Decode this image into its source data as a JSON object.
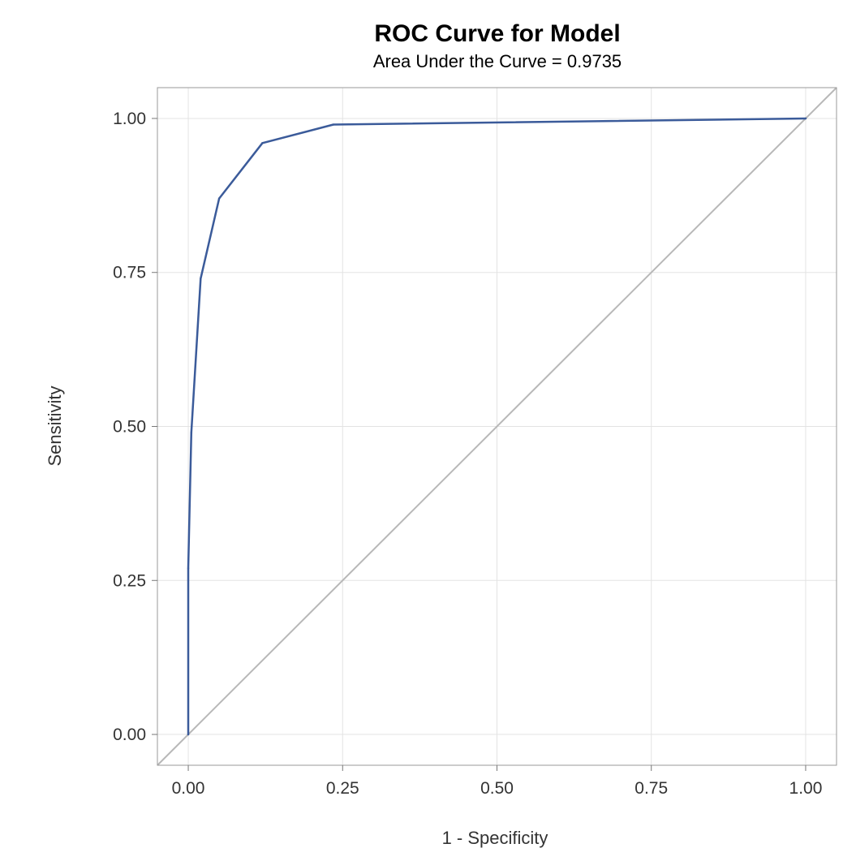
{
  "chart_data": {
    "type": "line",
    "title": "ROC Curve for Model",
    "subtitle": "Area Under the Curve = 0.9735",
    "xlabel": "1 - Specificity",
    "ylabel": "Sensitivity",
    "xlim": [
      -0.05,
      1.05
    ],
    "ylim": [
      -0.05,
      1.05
    ],
    "xticks": [
      0,
      0.25,
      0.5,
      0.75,
      1
    ],
    "yticks": [
      0,
      0.25,
      0.5,
      0.75,
      1
    ],
    "xtick_labels": [
      "0.00",
      "0.25",
      "0.50",
      "0.75",
      "1.00"
    ],
    "ytick_labels": [
      "0.00",
      "0.25",
      "0.50",
      "0.75",
      "1.00"
    ],
    "grid": true,
    "legend": "none",
    "series": [
      {
        "color": "#3b5b9a",
        "points": [
          {
            "x": 0.0,
            "y": 0.0
          },
          {
            "x": 0.0,
            "y": 0.27
          },
          {
            "x": 0.005,
            "y": 0.49
          },
          {
            "x": 0.02,
            "y": 0.74
          },
          {
            "x": 0.05,
            "y": 0.87
          },
          {
            "x": 0.12,
            "y": 0.96
          },
          {
            "x": 0.235,
            "y": 0.99
          },
          {
            "x": 1.0,
            "y": 1.0
          }
        ]
      }
    ],
    "reference_line": {
      "color": "#b8b8b8",
      "points": [
        {
          "x": -0.05,
          "y": -0.05
        },
        {
          "x": 1.05,
          "y": 1.05
        }
      ]
    }
  }
}
